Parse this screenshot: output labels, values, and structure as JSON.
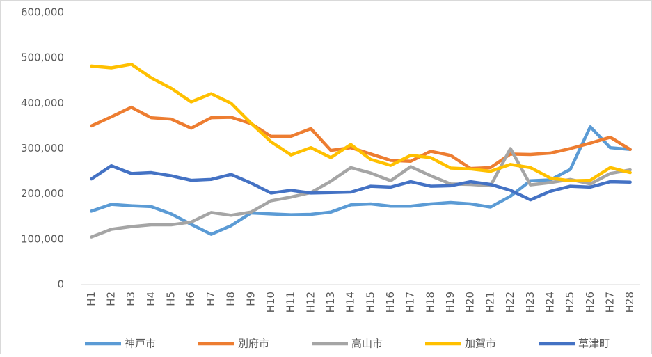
{
  "chart_data": {
    "type": "line",
    "categories": [
      "H1",
      "H2",
      "H3",
      "H4",
      "H5",
      "H6",
      "H7",
      "H8",
      "H9",
      "H10",
      "H11",
      "H12",
      "H13",
      "H14",
      "H15",
      "H16",
      "H17",
      "H18",
      "H19",
      "H20",
      "H21",
      "H22",
      "H23",
      "H24",
      "H25",
      "H26",
      "H27",
      "H28"
    ],
    "series": [
      {
        "name": "神戸市",
        "color": "#5b9bd5",
        "values": [
          162000,
          177000,
          174000,
          172000,
          156000,
          133000,
          111000,
          130000,
          158000,
          156000,
          154000,
          155000,
          160000,
          176000,
          178000,
          173000,
          173000,
          178000,
          181000,
          178000,
          171000,
          195000,
          229000,
          231000,
          254000,
          348000,
          302000,
          298000
        ]
      },
      {
        "name": "別府市",
        "color": "#ed7d31",
        "values": [
          350000,
          370000,
          391000,
          368000,
          365000,
          345000,
          368000,
          369000,
          355000,
          327000,
          327000,
          344000,
          296000,
          302000,
          288000,
          274000,
          272000,
          294000,
          285000,
          256000,
          258000,
          288000,
          287000,
          290000,
          300000,
          312000,
          325000,
          298000
        ]
      },
      {
        "name": "高山市",
        "color": "#a5a5a5",
        "values": [
          105000,
          122000,
          128000,
          132000,
          132000,
          138000,
          159000,
          153000,
          160000,
          185000,
          193000,
          203000,
          228000,
          258000,
          246000,
          229000,
          260000,
          240000,
          222000,
          221000,
          218000,
          300000,
          220000,
          225000,
          232000,
          222000,
          245000,
          253000
        ]
      },
      {
        "name": "加賀市",
        "color": "#ffc000",
        "values": [
          482000,
          478000,
          486000,
          456000,
          433000,
          403000,
          421000,
          400000,
          356000,
          315000,
          286000,
          302000,
          280000,
          309000,
          276000,
          263000,
          285000,
          280000,
          257000,
          255000,
          250000,
          265000,
          258000,
          235000,
          229000,
          230000,
          258000,
          247000
        ]
      },
      {
        "name": "草津町",
        "color": "#4472c4",
        "values": [
          233000,
          262000,
          245000,
          247000,
          240000,
          230000,
          232000,
          243000,
          224000,
          202000,
          208000,
          202000,
          203000,
          204000,
          217000,
          215000,
          227000,
          217000,
          218000,
          227000,
          221000,
          208000,
          187000,
          206000,
          217000,
          215000,
          227000,
          226000
        ]
      }
    ],
    "ylim": [
      0,
      600000
    ],
    "yticks": [
      0,
      {
        "value": 100000,
        "label": "100,000"
      },
      {
        "value": 200000,
        "label": "200,000"
      },
      {
        "value": 300000,
        "label": "300,000"
      },
      {
        "value": 400000,
        "label": "400,000"
      },
      {
        "value": 500000,
        "label": "500,000"
      },
      {
        "value": 600000,
        "label": "600,000"
      }
    ],
    "grid": false,
    "legend": "bottom"
  }
}
